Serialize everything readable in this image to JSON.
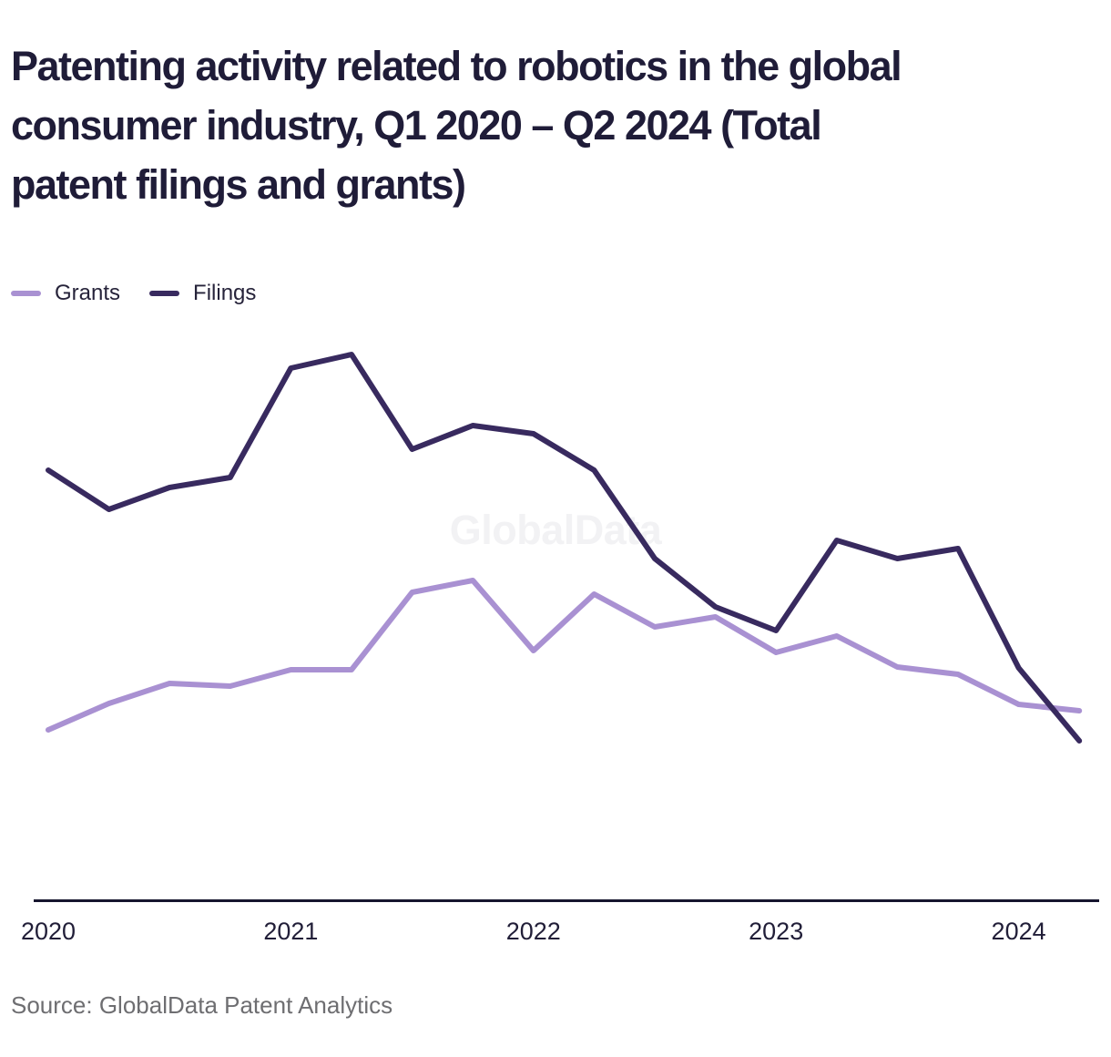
{
  "header": {
    "title_lines": [
      "Patenting activity related to robotics in the global",
      "consumer industry, Q1 2020 – Q2 2024 (Total",
      "patent filings and grants)"
    ]
  },
  "watermark": {
    "text": "GlobalData"
  },
  "footer": {
    "source": "Source: GlobalData Patent Analytics"
  },
  "colors": {
    "title": "#1f1c38",
    "axis": "#16152e",
    "tick_label": "#211e38",
    "source_text": "#6e6e71",
    "watermark": "#f2f2f4",
    "grants_line": "#a991d2",
    "filings_line": "#382a5f"
  },
  "chart_data": {
    "type": "line",
    "title": "Patenting activity related to robotics in the global consumer industry, Q1 2020 – Q2 2024 (Total patent filings and grants)",
    "xlabel": "",
    "ylabel": "",
    "y_axis_visible": false,
    "grid": false,
    "legend_position": "top-left",
    "note": "No y-axis scale is shown in the chart; values are relative units estimated from line positions.",
    "categories": [
      "Q1 2020",
      "Q2 2020",
      "Q3 2020",
      "Q4 2020",
      "Q1 2021",
      "Q2 2021",
      "Q3 2021",
      "Q4 2021",
      "Q1 2022",
      "Q2 2022",
      "Q3 2022",
      "Q4 2022",
      "Q1 2023",
      "Q2 2023",
      "Q3 2023",
      "Q4 2023",
      "Q1 2024",
      "Q2 2024"
    ],
    "x_tick_labels": [
      "2020",
      "2021",
      "2022",
      "2023",
      "2024"
    ],
    "ylim": [
      0,
      650
    ],
    "series": [
      {
        "name": "Grants",
        "color": "#a991d2",
        "values": [
          188,
          217,
          239,
          236,
          254,
          254,
          339,
          352,
          275,
          337,
          301,
          312,
          273,
          291,
          257,
          249,
          216,
          209
        ]
      },
      {
        "name": "Filings",
        "color": "#382a5f",
        "values": [
          473,
          430,
          454,
          465,
          585,
          600,
          496,
          522,
          513,
          473,
          376,
          323,
          297,
          396,
          376,
          387,
          256,
          176
        ]
      }
    ]
  }
}
